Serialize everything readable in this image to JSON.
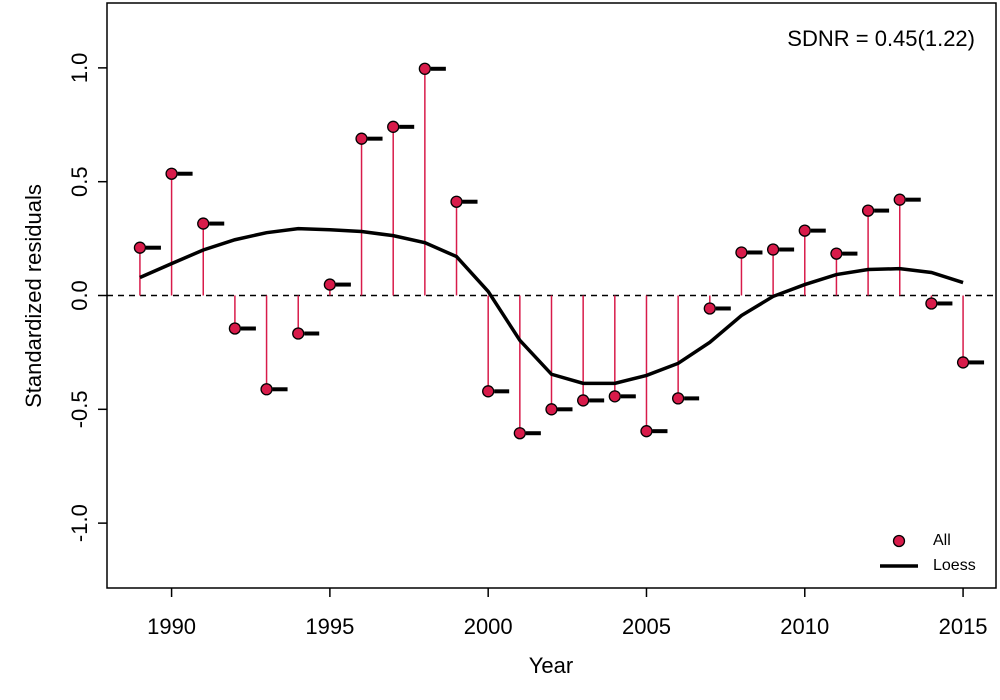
{
  "chart_data": {
    "type": "scatter",
    "annotation": "SDNR = 0.45(1.22)",
    "xlabel": "Year",
    "ylabel": "Standardized residuals",
    "x": [
      1989,
      1990,
      1991,
      1992,
      1993,
      1994,
      1995,
      1996,
      1997,
      1998,
      1999,
      2000,
      2001,
      2002,
      2003,
      2004,
      2005,
      2006,
      2007,
      2008,
      2009,
      2010,
      2011,
      2012,
      2013,
      2014,
      2015
    ],
    "series": [
      {
        "name": "All",
        "type": "stem",
        "color": "#d81b4a",
        "values": [
          0.21,
          0.535,
          0.316,
          -0.145,
          -0.412,
          -0.167,
          0.048,
          0.689,
          0.741,
          0.996,
          0.412,
          -0.421,
          -0.605,
          -0.5,
          -0.461,
          -0.443,
          -0.596,
          -0.452,
          -0.057,
          0.189,
          0.202,
          0.285,
          0.184,
          0.373,
          0.421,
          -0.035,
          -0.294
        ]
      },
      {
        "name": "Loess",
        "type": "line",
        "color": "#000000",
        "values": [
          0.079,
          0.14,
          0.2,
          0.245,
          0.276,
          0.294,
          0.289,
          0.281,
          0.263,
          0.232,
          0.171,
          0.018,
          -0.197,
          -0.346,
          -0.386,
          -0.386,
          -0.351,
          -0.298,
          -0.206,
          -0.088,
          -0.004,
          0.048,
          0.092,
          0.114,
          0.118,
          0.101,
          0.057
        ]
      }
    ],
    "reference_line": 0,
    "xlim": [
      1987.96,
      2016.04
    ],
    "ylim": [
      -1.285,
      1.285
    ],
    "xticks": [
      1990,
      1995,
      2000,
      2005,
      2010,
      2015
    ],
    "yticks": [
      {
        "value": -1,
        "label": "-1.0"
      },
      -0.5,
      {
        "value": 0,
        "label": "0.0"
      },
      0.5,
      {
        "value": 1,
        "label": "1.0"
      }
    ],
    "legend": "bottomright"
  }
}
